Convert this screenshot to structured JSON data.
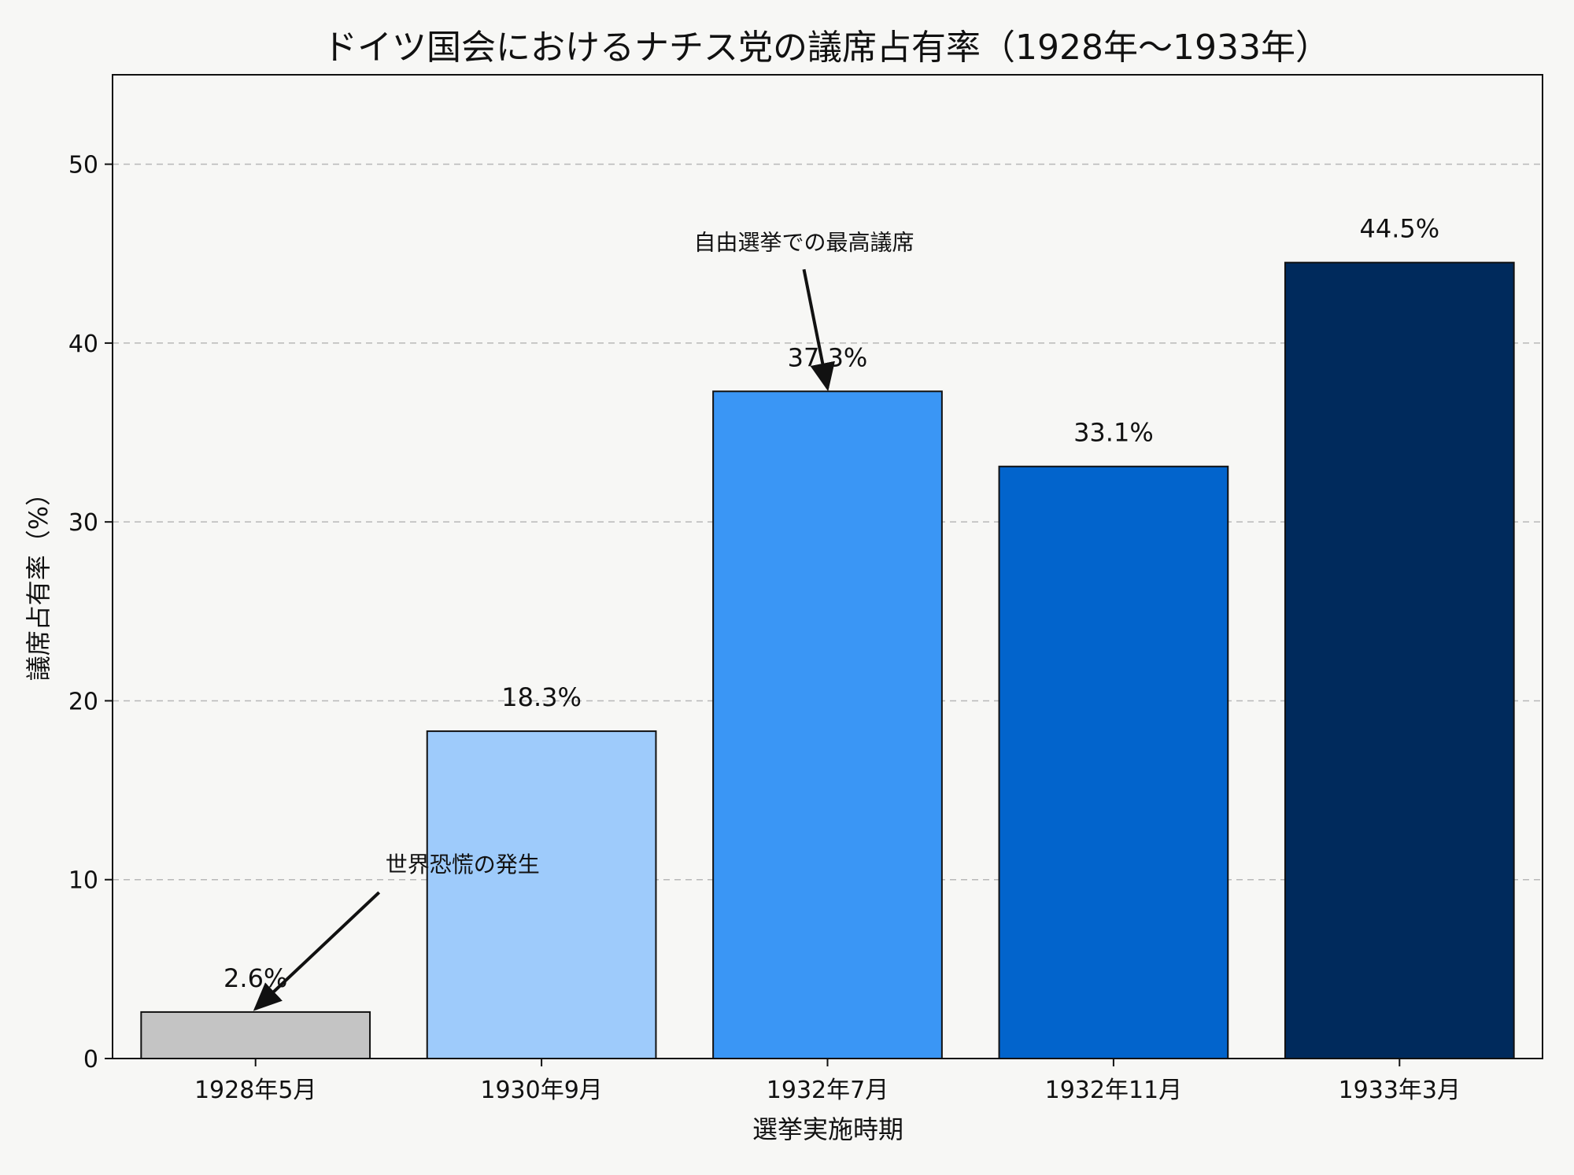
{
  "chart_data": {
    "type": "bar",
    "title": "ドイツ国会におけるナチス党の議席占有率（1928年〜1933年）",
    "xlabel": "選挙実施時期",
    "ylabel": "議席占有率（%）",
    "categories": [
      "1928年5月",
      "1930年9月",
      "1932年7月",
      "1932年11月",
      "1933年3月"
    ],
    "values": [
      2.6,
      18.3,
      37.3,
      33.1,
      44.5
    ],
    "value_labels": [
      "2.6%",
      "18.3%",
      "37.3%",
      "33.1%",
      "44.5%"
    ],
    "bar_colors": [
      "#c4c4c4",
      "#9ecbfb",
      "#3a96f5",
      "#0264cc",
      "#002a5c"
    ],
    "ylim": [
      0,
      55
    ],
    "yticks": [
      0,
      10,
      20,
      30,
      40,
      50
    ],
    "grid": "y-dashed",
    "annotations": [
      {
        "text": "世界恐慌の発生",
        "target_index": 0
      },
      {
        "text": "自由選挙での最高議席",
        "target_index": 2
      }
    ]
  }
}
